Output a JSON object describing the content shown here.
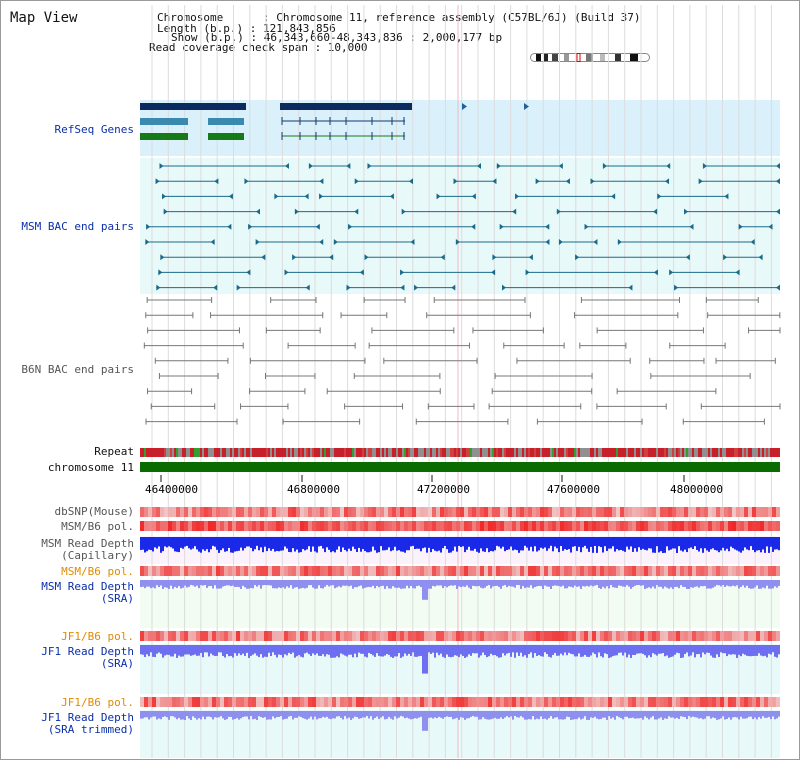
{
  "header": {
    "title": "Map View",
    "chromosome_line": "Chromosome      : Chromosome 11, reference assembly (C57BL/6J) (Build 37)",
    "length_line": "Length (b.p.) : 121,843,856",
    "show_line": "Show (b.p.) : 46,343,660-48,343,836 : 2,000,177 bp",
    "coverage_line": "Read coverage check span : 10,000"
  },
  "tracks": {
    "refseq": "RefSeq Genes",
    "msm_bac": "MSM BAC end pairs",
    "b6n_bac": "B6N BAC end pairs",
    "repeat": "Repeat",
    "chromosome": "chromosome 11",
    "dbsnp": "dbSNP(Mouse)",
    "msm_pol": "MSM/B6 pol.",
    "msm_depth_cap_1": "MSM Read Depth",
    "msm_depth_cap_2": "(Capillary)",
    "msm_pol_sra": "MSM/B6 pol.",
    "msm_depth_sra_1": "MSM Read Depth",
    "msm_depth_sra_2": "(SRA)",
    "jf1_pol": "JF1/B6 pol.",
    "jf1_depth_1": "JF1 Read Depth",
    "jf1_depth_2": "(SRA)",
    "jf1_pol_2": "JF1/B6 pol.",
    "jf1_trim_1": "JF1 Read Depth",
    "jf1_trim_2": "(SRA trimmed)"
  },
  "axis": {
    "ticks": [
      "46400000",
      "46800000",
      "47200000",
      "47600000",
      "48000000"
    ]
  },
  "colors": {
    "label_blue": "#0b2fa8",
    "label_orange": "#e08a00",
    "refseq_bg": "#daf0fb",
    "msm_bg": "#e8f9f9",
    "chromosome": "#0a6b00",
    "msm_feature": "#1a6a8a",
    "b6n_feature": "#777777"
  }
}
